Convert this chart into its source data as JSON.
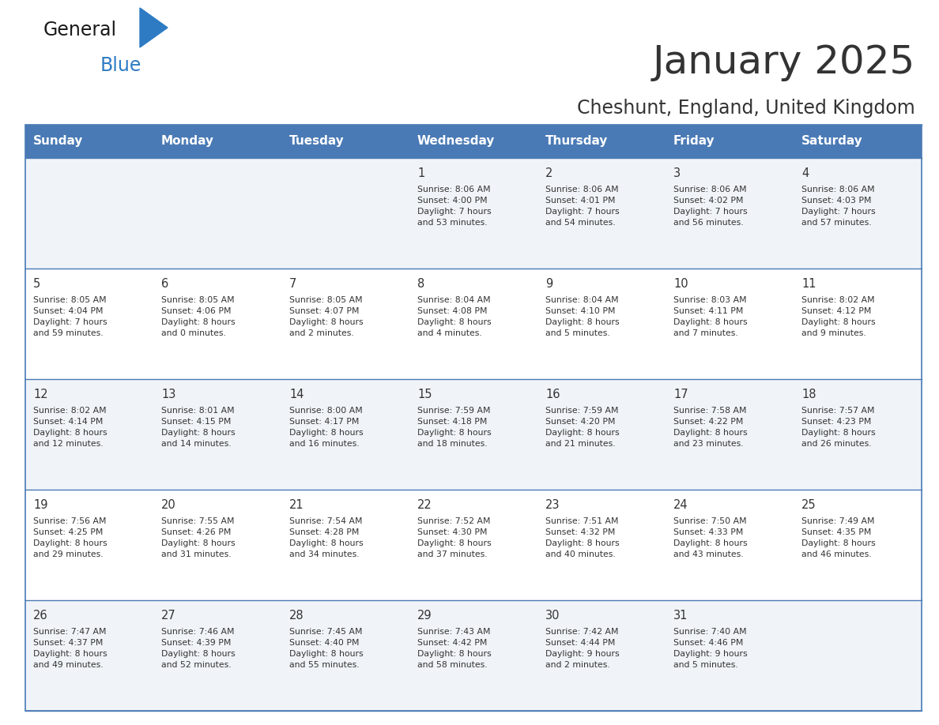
{
  "title": "January 2025",
  "subtitle": "Cheshunt, England, United Kingdom",
  "header_bg": "#4a7ab5",
  "header_text_color": "#ffffff",
  "cell_bg_odd": "#f0f4f8",
  "cell_bg_even": "#ffffff",
  "divider_color": "#4a7ab5",
  "text_color": "#333333",
  "days_of_week": [
    "Sunday",
    "Monday",
    "Tuesday",
    "Wednesday",
    "Thursday",
    "Friday",
    "Saturday"
  ],
  "calendar": [
    [
      {
        "day": "",
        "info": ""
      },
      {
        "day": "",
        "info": ""
      },
      {
        "day": "",
        "info": ""
      },
      {
        "day": "1",
        "info": "Sunrise: 8:06 AM\nSunset: 4:00 PM\nDaylight: 7 hours\nand 53 minutes."
      },
      {
        "day": "2",
        "info": "Sunrise: 8:06 AM\nSunset: 4:01 PM\nDaylight: 7 hours\nand 54 minutes."
      },
      {
        "day": "3",
        "info": "Sunrise: 8:06 AM\nSunset: 4:02 PM\nDaylight: 7 hours\nand 56 minutes."
      },
      {
        "day": "4",
        "info": "Sunrise: 8:06 AM\nSunset: 4:03 PM\nDaylight: 7 hours\nand 57 minutes."
      }
    ],
    [
      {
        "day": "5",
        "info": "Sunrise: 8:05 AM\nSunset: 4:04 PM\nDaylight: 7 hours\nand 59 minutes."
      },
      {
        "day": "6",
        "info": "Sunrise: 8:05 AM\nSunset: 4:06 PM\nDaylight: 8 hours\nand 0 minutes."
      },
      {
        "day": "7",
        "info": "Sunrise: 8:05 AM\nSunset: 4:07 PM\nDaylight: 8 hours\nand 2 minutes."
      },
      {
        "day": "8",
        "info": "Sunrise: 8:04 AM\nSunset: 4:08 PM\nDaylight: 8 hours\nand 4 minutes."
      },
      {
        "day": "9",
        "info": "Sunrise: 8:04 AM\nSunset: 4:10 PM\nDaylight: 8 hours\nand 5 minutes."
      },
      {
        "day": "10",
        "info": "Sunrise: 8:03 AM\nSunset: 4:11 PM\nDaylight: 8 hours\nand 7 minutes."
      },
      {
        "day": "11",
        "info": "Sunrise: 8:02 AM\nSunset: 4:12 PM\nDaylight: 8 hours\nand 9 minutes."
      }
    ],
    [
      {
        "day": "12",
        "info": "Sunrise: 8:02 AM\nSunset: 4:14 PM\nDaylight: 8 hours\nand 12 minutes."
      },
      {
        "day": "13",
        "info": "Sunrise: 8:01 AM\nSunset: 4:15 PM\nDaylight: 8 hours\nand 14 minutes."
      },
      {
        "day": "14",
        "info": "Sunrise: 8:00 AM\nSunset: 4:17 PM\nDaylight: 8 hours\nand 16 minutes."
      },
      {
        "day": "15",
        "info": "Sunrise: 7:59 AM\nSunset: 4:18 PM\nDaylight: 8 hours\nand 18 minutes."
      },
      {
        "day": "16",
        "info": "Sunrise: 7:59 AM\nSunset: 4:20 PM\nDaylight: 8 hours\nand 21 minutes."
      },
      {
        "day": "17",
        "info": "Sunrise: 7:58 AM\nSunset: 4:22 PM\nDaylight: 8 hours\nand 23 minutes."
      },
      {
        "day": "18",
        "info": "Sunrise: 7:57 AM\nSunset: 4:23 PM\nDaylight: 8 hours\nand 26 minutes."
      }
    ],
    [
      {
        "day": "19",
        "info": "Sunrise: 7:56 AM\nSunset: 4:25 PM\nDaylight: 8 hours\nand 29 minutes."
      },
      {
        "day": "20",
        "info": "Sunrise: 7:55 AM\nSunset: 4:26 PM\nDaylight: 8 hours\nand 31 minutes."
      },
      {
        "day": "21",
        "info": "Sunrise: 7:54 AM\nSunset: 4:28 PM\nDaylight: 8 hours\nand 34 minutes."
      },
      {
        "day": "22",
        "info": "Sunrise: 7:52 AM\nSunset: 4:30 PM\nDaylight: 8 hours\nand 37 minutes."
      },
      {
        "day": "23",
        "info": "Sunrise: 7:51 AM\nSunset: 4:32 PM\nDaylight: 8 hours\nand 40 minutes."
      },
      {
        "day": "24",
        "info": "Sunrise: 7:50 AM\nSunset: 4:33 PM\nDaylight: 8 hours\nand 43 minutes."
      },
      {
        "day": "25",
        "info": "Sunrise: 7:49 AM\nSunset: 4:35 PM\nDaylight: 8 hours\nand 46 minutes."
      }
    ],
    [
      {
        "day": "26",
        "info": "Sunrise: 7:47 AM\nSunset: 4:37 PM\nDaylight: 8 hours\nand 49 minutes."
      },
      {
        "day": "27",
        "info": "Sunrise: 7:46 AM\nSunset: 4:39 PM\nDaylight: 8 hours\nand 52 minutes."
      },
      {
        "day": "28",
        "info": "Sunrise: 7:45 AM\nSunset: 4:40 PM\nDaylight: 8 hours\nand 55 minutes."
      },
      {
        "day": "29",
        "info": "Sunrise: 7:43 AM\nSunset: 4:42 PM\nDaylight: 8 hours\nand 58 minutes."
      },
      {
        "day": "30",
        "info": "Sunrise: 7:42 AM\nSunset: 4:44 PM\nDaylight: 9 hours\nand 2 minutes."
      },
      {
        "day": "31",
        "info": "Sunrise: 7:40 AM\nSunset: 4:46 PM\nDaylight: 9 hours\nand 5 minutes."
      },
      {
        "day": "",
        "info": ""
      }
    ]
  ],
  "logo_color_general": "#1a1a1a",
  "logo_color_blue": "#2e7bc4",
  "logo_triangle_color": "#2e7bc4",
  "fig_width": 11.88,
  "fig_height": 9.18,
  "dpi": 100
}
